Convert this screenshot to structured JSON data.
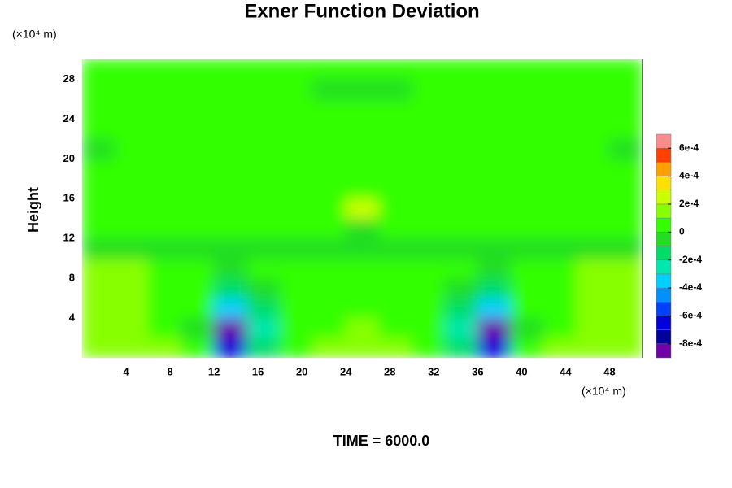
{
  "chart_data": {
    "type": "contour",
    "title": "Exner Function Deviation",
    "ylabel": "Height",
    "yunit": "(×10⁴ m)",
    "xunit": "(×10⁴ m)",
    "annotation": "TIME = 6000.0",
    "xlim": [
      0,
      51
    ],
    "ylim": [
      0,
      30
    ],
    "xticks": [
      4,
      8,
      12,
      16,
      20,
      24,
      28,
      32,
      36,
      40,
      44,
      48
    ],
    "yticks": [
      4,
      8,
      12,
      16,
      20,
      24,
      28
    ],
    "x": [
      1.5,
      4.5,
      7.5,
      10.5,
      13.5,
      16.5,
      19.5,
      22.5,
      25.5,
      28.5,
      31.5,
      34.5,
      37.5,
      40.5,
      43.5,
      46.5,
      49.5
    ],
    "y": [
      1,
      3,
      5,
      7,
      9,
      11,
      13,
      15,
      17,
      19,
      21,
      23,
      25,
      27,
      29
    ],
    "values": [
      [
        0.00015,
        0.00015,
        0.00015,
        5e-05,
        -0.00065,
        -0.00015,
        5e-05,
        0.00015,
        0.00015,
        0.00015,
        5e-05,
        -0.00015,
        -0.00065,
        5e-05,
        0.00015,
        0.00015,
        0.00015
      ],
      [
        0.00015,
        0.00015,
        5e-05,
        -5e-05,
        -0.00085,
        -0.00025,
        5e-05,
        5e-05,
        0.00015,
        5e-05,
        5e-05,
        -0.00025,
        -0.00085,
        -5e-05,
        5e-05,
        0.00015,
        0.00015
      ],
      [
        0.00015,
        0.00015,
        5e-05,
        5e-05,
        -0.00035,
        -0.00015,
        5e-05,
        5e-05,
        5e-05,
        5e-05,
        5e-05,
        -0.00015,
        -0.00035,
        5e-05,
        5e-05,
        0.00015,
        0.00015
      ],
      [
        0.00015,
        0.00015,
        5e-05,
        5e-05,
        -0.00015,
        -5e-05,
        5e-05,
        5e-05,
        5e-05,
        5e-05,
        5e-05,
        -5e-05,
        -0.00015,
        5e-05,
        5e-05,
        0.00015,
        0.00015
      ],
      [
        0.00015,
        0.00015,
        5e-05,
        5e-05,
        -5e-05,
        5e-05,
        5e-05,
        5e-05,
        5e-05,
        5e-05,
        5e-05,
        5e-05,
        -5e-05,
        5e-05,
        5e-05,
        0.00015,
        0.00015
      ],
      [
        -5e-05,
        -5e-05,
        -5e-05,
        -5e-05,
        -5e-05,
        -5e-05,
        -5e-05,
        -5e-05,
        -5e-05,
        -5e-05,
        -5e-05,
        -5e-05,
        -5e-05,
        -5e-05,
        -5e-05,
        -5e-05,
        -5e-05
      ],
      [
        5e-05,
        5e-05,
        5e-05,
        5e-05,
        5e-05,
        5e-05,
        5e-05,
        5e-05,
        -5e-05,
        5e-05,
        5e-05,
        5e-05,
        5e-05,
        5e-05,
        5e-05,
        5e-05,
        5e-05
      ],
      [
        5e-05,
        5e-05,
        5e-05,
        5e-05,
        5e-05,
        5e-05,
        5e-05,
        5e-05,
        0.00025,
        5e-05,
        5e-05,
        5e-05,
        5e-05,
        5e-05,
        5e-05,
        5e-05,
        5e-05
      ],
      [
        5e-05,
        5e-05,
        5e-05,
        5e-05,
        5e-05,
        5e-05,
        5e-05,
        5e-05,
        5e-05,
        5e-05,
        5e-05,
        5e-05,
        5e-05,
        5e-05,
        5e-05,
        5e-05,
        5e-05
      ],
      [
        5e-05,
        5e-05,
        5e-05,
        5e-05,
        5e-05,
        5e-05,
        5e-05,
        5e-05,
        5e-05,
        5e-05,
        5e-05,
        5e-05,
        5e-05,
        5e-05,
        5e-05,
        5e-05,
        5e-05
      ],
      [
        -5e-05,
        5e-05,
        5e-05,
        5e-05,
        5e-05,
        5e-05,
        5e-05,
        5e-05,
        5e-05,
        5e-05,
        5e-05,
        5e-05,
        5e-05,
        5e-05,
        5e-05,
        5e-05,
        -5e-05
      ],
      [
        5e-05,
        5e-05,
        5e-05,
        5e-05,
        5e-05,
        5e-05,
        5e-05,
        5e-05,
        5e-05,
        5e-05,
        5e-05,
        5e-05,
        5e-05,
        5e-05,
        5e-05,
        5e-05,
        5e-05
      ],
      [
        5e-05,
        5e-05,
        5e-05,
        5e-05,
        5e-05,
        5e-05,
        5e-05,
        5e-05,
        5e-05,
        5e-05,
        5e-05,
        5e-05,
        5e-05,
        5e-05,
        5e-05,
        5e-05,
        5e-05
      ],
      [
        5e-05,
        5e-05,
        5e-05,
        5e-05,
        5e-05,
        5e-05,
        5e-05,
        -5e-05,
        -5e-05,
        -5e-05,
        5e-05,
        5e-05,
        5e-05,
        5e-05,
        5e-05,
        5e-05,
        5e-05
      ],
      [
        5e-05,
        5e-05,
        5e-05,
        5e-05,
        5e-05,
        5e-05,
        5e-05,
        5e-05,
        5e-05,
        5e-05,
        5e-05,
        5e-05,
        5e-05,
        5e-05,
        5e-05,
        5e-05,
        5e-05
      ]
    ],
    "levels": [
      -0.0009,
      -0.0008,
      -0.0007,
      -0.0006,
      -0.0005,
      -0.0004,
      -0.0003,
      -0.0002,
      -0.0001,
      0,
      0.0001,
      0.0002,
      0.0003,
      0.0004,
      0.0005,
      0.0006,
      0.0007
    ],
    "colors": [
      "#7000a8",
      "#00009a",
      "#0000dc",
      "#0040ff",
      "#0090ff",
      "#00d0ff",
      "#00e8b0",
      "#00dd66",
      "#22dd22",
      "#33ff00",
      "#88ff00",
      "#ccff00",
      "#ffe000",
      "#ffa000",
      "#ff4000",
      "#ff8c8c"
    ],
    "cticks": [
      {
        "value": 0.0006,
        "label": "6e-4"
      },
      {
        "value": 0.0004,
        "label": "4e-4"
      },
      {
        "value": 0.0002,
        "label": "2e-4"
      },
      0,
      {
        "value": -0.0002,
        "label": "-2e-4"
      },
      {
        "value": -0.0004,
        "label": "-4e-4"
      },
      {
        "value": -0.0006,
        "label": "-6e-4"
      },
      {
        "value": -0.0008,
        "label": "-8e-4"
      }
    ]
  }
}
